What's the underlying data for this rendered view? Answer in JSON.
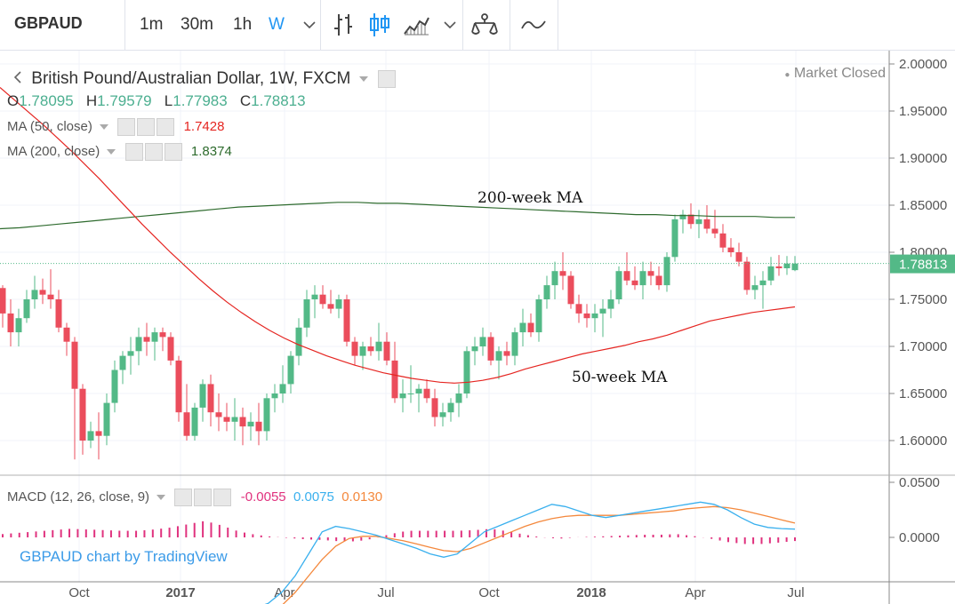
{
  "toolbar": {
    "symbol": "GBPAUD",
    "timeframes": [
      "1m",
      "30m",
      "1h",
      "W"
    ],
    "active_timeframe": "W"
  },
  "legend": {
    "title": "British Pound/Australian Dollar, 1W, FXCM",
    "ohlc": {
      "o_label": "O",
      "o": "1.78095",
      "h_label": "H",
      "h": "1.79579",
      "l_label": "L",
      "l": "1.77983",
      "c_label": "C",
      "c": "1.78813"
    },
    "ma50": {
      "label": "MA (50, close)",
      "value": "1.7428"
    },
    "ma200": {
      "label": "MA (200, close)",
      "value": "1.8374"
    },
    "macd": {
      "label": "MACD (12, 26, close, 9)",
      "hist": "-0.0055",
      "macd": "0.0075",
      "signal": "0.0130"
    },
    "market_status": "Market Closed"
  },
  "watermark": "GBPAUD chart by TradingView",
  "colors": {
    "up": "#53b987",
    "down": "#eb4d5c",
    "ma50": "#e52521",
    "ma200": "#2e6b2e",
    "macd": "#3ab0ee",
    "signal": "#f4883c",
    "hist": "#e0327e"
  },
  "chart_data": {
    "type": "candlestick",
    "price_axis": {
      "ticks": [
        "2.00000",
        "1.95000",
        "1.90000",
        "1.85000",
        "1.80000",
        "1.75000",
        "1.70000",
        "1.65000",
        "1.60000"
      ],
      "last_price": "1.78813"
    },
    "macd_axis": {
      "ticks": [
        "0.0500",
        "0.0000"
      ]
    },
    "time_axis": [
      "Oct",
      "2017",
      "Apr",
      "Jul",
      "Oct",
      "2018",
      "Apr",
      "Jul"
    ],
    "annotations": [
      "200-week MA",
      "50-week MA"
    ],
    "candles": [
      [
        1.762,
        1.765,
        1.72,
        1.735
      ],
      [
        1.735,
        1.75,
        1.7,
        1.715
      ],
      [
        1.715,
        1.74,
        1.7,
        1.73
      ],
      [
        1.73,
        1.76,
        1.725,
        1.75
      ],
      [
        1.75,
        1.775,
        1.74,
        1.76
      ],
      [
        1.76,
        1.772,
        1.745,
        1.755
      ],
      [
        1.755,
        1.782,
        1.74,
        1.75
      ],
      [
        1.75,
        1.76,
        1.715,
        1.72
      ],
      [
        1.72,
        1.725,
        1.69,
        1.705
      ],
      [
        1.705,
        1.71,
        1.58,
        1.655
      ],
      [
        1.655,
        1.66,
        1.585,
        1.6
      ],
      [
        1.6,
        1.62,
        1.592,
        1.61
      ],
      [
        1.61,
        1.63,
        1.58,
        1.605
      ],
      [
        1.605,
        1.65,
        1.595,
        1.64
      ],
      [
        1.64,
        1.685,
        1.63,
        1.675
      ],
      [
        1.675,
        1.695,
        1.66,
        1.69
      ],
      [
        1.69,
        1.71,
        1.67,
        1.695
      ],
      [
        1.695,
        1.72,
        1.68,
        1.71
      ],
      [
        1.71,
        1.725,
        1.69,
        1.705
      ],
      [
        1.705,
        1.72,
        1.685,
        1.715
      ],
      [
        1.715,
        1.72,
        1.695,
        1.71
      ],
      [
        1.71,
        1.715,
        1.68,
        1.685
      ],
      [
        1.685,
        1.69,
        1.62,
        1.63
      ],
      [
        1.63,
        1.66,
        1.6,
        1.605
      ],
      [
        1.605,
        1.64,
        1.6,
        1.635
      ],
      [
        1.635,
        1.665,
        1.62,
        1.66
      ],
      [
        1.66,
        1.67,
        1.615,
        1.63
      ],
      [
        1.63,
        1.65,
        1.61,
        1.625
      ],
      [
        1.625,
        1.64,
        1.61,
        1.62
      ],
      [
        1.62,
        1.645,
        1.6,
        1.625
      ],
      [
        1.625,
        1.635,
        1.595,
        1.615
      ],
      [
        1.615,
        1.63,
        1.6,
        1.62
      ],
      [
        1.62,
        1.64,
        1.595,
        1.61
      ],
      [
        1.61,
        1.65,
        1.6,
        1.645
      ],
      [
        1.645,
        1.66,
        1.63,
        1.65
      ],
      [
        1.65,
        1.68,
        1.64,
        1.66
      ],
      [
        1.66,
        1.695,
        1.65,
        1.69
      ],
      [
        1.69,
        1.73,
        1.68,
        1.72
      ],
      [
        1.72,
        1.76,
        1.71,
        1.75
      ],
      [
        1.75,
        1.765,
        1.73,
        1.755
      ],
      [
        1.755,
        1.765,
        1.74,
        1.745
      ],
      [
        1.745,
        1.76,
        1.735,
        1.74
      ],
      [
        1.74,
        1.755,
        1.73,
        1.75
      ],
      [
        1.75,
        1.755,
        1.7,
        1.705
      ],
      [
        1.705,
        1.71,
        1.68,
        1.69
      ],
      [
        1.69,
        1.705,
        1.675,
        1.7
      ],
      [
        1.7,
        1.71,
        1.69,
        1.695
      ],
      [
        1.695,
        1.725,
        1.685,
        1.705
      ],
      [
        1.705,
        1.715,
        1.68,
        1.685
      ],
      [
        1.685,
        1.705,
        1.64,
        1.645
      ],
      [
        1.645,
        1.665,
        1.63,
        1.65
      ],
      [
        1.65,
        1.68,
        1.64,
        1.65
      ],
      [
        1.65,
        1.66,
        1.63,
        1.655
      ],
      [
        1.655,
        1.665,
        1.64,
        1.645
      ],
      [
        1.645,
        1.655,
        1.615,
        1.625
      ],
      [
        1.625,
        1.64,
        1.615,
        1.63
      ],
      [
        1.63,
        1.645,
        1.62,
        1.64
      ],
      [
        1.64,
        1.66,
        1.625,
        1.65
      ],
      [
        1.65,
        1.7,
        1.645,
        1.695
      ],
      [
        1.695,
        1.71,
        1.68,
        1.7
      ],
      [
        1.7,
        1.72,
        1.69,
        1.71
      ],
      [
        1.71,
        1.715,
        1.68,
        1.685
      ],
      [
        1.685,
        1.7,
        1.665,
        1.695
      ],
      [
        1.695,
        1.705,
        1.68,
        1.69
      ],
      [
        1.69,
        1.72,
        1.68,
        1.715
      ],
      [
        1.715,
        1.74,
        1.7,
        1.725
      ],
      [
        1.725,
        1.735,
        1.71,
        1.715
      ],
      [
        1.715,
        1.755,
        1.705,
        1.75
      ],
      [
        1.75,
        1.775,
        1.74,
        1.765
      ],
      [
        1.765,
        1.79,
        1.75,
        1.78
      ],
      [
        1.78,
        1.8,
        1.76,
        1.775
      ],
      [
        1.775,
        1.78,
        1.74,
        1.745
      ],
      [
        1.745,
        1.755,
        1.725,
        1.735
      ],
      [
        1.735,
        1.745,
        1.72,
        1.73
      ],
      [
        1.73,
        1.745,
        1.715,
        1.735
      ],
      [
        1.735,
        1.75,
        1.71,
        1.74
      ],
      [
        1.74,
        1.76,
        1.73,
        1.75
      ],
      [
        1.75,
        1.785,
        1.745,
        1.78
      ],
      [
        1.78,
        1.8,
        1.765,
        1.77
      ],
      [
        1.77,
        1.785,
        1.76,
        1.765
      ],
      [
        1.765,
        1.79,
        1.75,
        1.78
      ],
      [
        1.78,
        1.79,
        1.765,
        1.775
      ],
      [
        1.775,
        1.785,
        1.76,
        1.765
      ],
      [
        1.765,
        1.8,
        1.758,
        1.795
      ],
      [
        1.795,
        1.84,
        1.79,
        1.835
      ],
      [
        1.835,
        1.845,
        1.82,
        1.84
      ],
      [
        1.84,
        1.852,
        1.825,
        1.83
      ],
      [
        1.83,
        1.845,
        1.815,
        1.835
      ],
      [
        1.835,
        1.85,
        1.82,
        1.825
      ],
      [
        1.825,
        1.845,
        1.815,
        1.82
      ],
      [
        1.82,
        1.83,
        1.8,
        1.805
      ],
      [
        1.805,
        1.815,
        1.795,
        1.8
      ],
      [
        1.8,
        1.81,
        1.785,
        1.79
      ],
      [
        1.79,
        1.795,
        1.755,
        1.76
      ],
      [
        1.76,
        1.775,
        1.75,
        1.765
      ],
      [
        1.765,
        1.78,
        1.74,
        1.77
      ],
      [
        1.77,
        1.795,
        1.765,
        1.785
      ],
      [
        1.785,
        1.797,
        1.775,
        1.783
      ],
      [
        1.783,
        1.796,
        1.776,
        1.788
      ],
      [
        1.781,
        1.796,
        1.78,
        1.788
      ]
    ],
    "ma50": [
      1.975,
      1.962,
      1.949,
      1.936,
      1.922,
      1.908,
      1.893,
      1.878,
      1.862,
      1.846,
      1.83,
      1.815,
      1.8,
      1.786,
      1.772,
      1.759,
      1.747,
      1.736,
      1.726,
      1.717,
      1.709,
      1.702,
      1.696,
      1.69,
      1.685,
      1.68,
      1.676,
      1.672,
      1.669,
      1.666,
      1.664,
      1.662,
      1.661,
      1.662,
      1.664,
      1.667,
      1.671,
      1.676,
      1.68,
      1.684,
      1.688,
      1.692,
      1.695,
      1.698,
      1.701,
      1.705,
      1.708,
      1.712,
      1.717,
      1.722,
      1.727,
      1.73,
      1.733,
      1.736,
      1.738,
      1.74,
      1.742
    ],
    "ma200": [
      1.825,
      1.826,
      1.828,
      1.83,
      1.832,
      1.834,
      1.836,
      1.838,
      1.84,
      1.842,
      1.844,
      1.846,
      1.848,
      1.849,
      1.85,
      1.851,
      1.852,
      1.853,
      1.853,
      1.852,
      1.852,
      1.851,
      1.85,
      1.849,
      1.848,
      1.847,
      1.846,
      1.845,
      1.844,
      1.843,
      1.842,
      1.841,
      1.84,
      1.84,
      1.839,
      1.839,
      1.838,
      1.838,
      1.838,
      1.837,
      1.837
    ],
    "macd": [
      -0.09,
      -0.085,
      -0.08,
      -0.075,
      -0.07,
      -0.068,
      -0.066,
      -0.064,
      -0.06,
      -0.05,
      -0.035,
      -0.015,
      0.005,
      0.01,
      0.008,
      0.005,
      0.002,
      -0.002,
      -0.006,
      -0.01,
      -0.015,
      -0.018,
      -0.015,
      -0.005,
      0.005,
      0.01,
      0.015,
      0.02,
      0.025,
      0.03,
      0.028,
      0.024,
      0.02,
      0.018,
      0.02,
      0.022,
      0.024,
      0.026,
      0.028,
      0.03,
      0.032,
      0.03,
      0.025,
      0.018,
      0.012,
      0.009,
      0.008,
      0.0075
    ],
    "signal": [
      -0.095,
      -0.092,
      -0.089,
      -0.086,
      -0.083,
      -0.08,
      -0.077,
      -0.074,
      -0.07,
      -0.062,
      -0.05,
      -0.035,
      -0.02,
      -0.008,
      -0.001,
      0.001,
      0.001,
      -0.001,
      -0.003,
      -0.006,
      -0.009,
      -0.012,
      -0.013,
      -0.01,
      -0.005,
      0.0,
      0.005,
      0.01,
      0.014,
      0.017,
      0.019,
      0.02,
      0.02,
      0.02,
      0.02,
      0.021,
      0.022,
      0.023,
      0.024,
      0.026,
      0.027,
      0.028,
      0.027,
      0.025,
      0.022,
      0.019,
      0.016,
      0.013
    ]
  }
}
